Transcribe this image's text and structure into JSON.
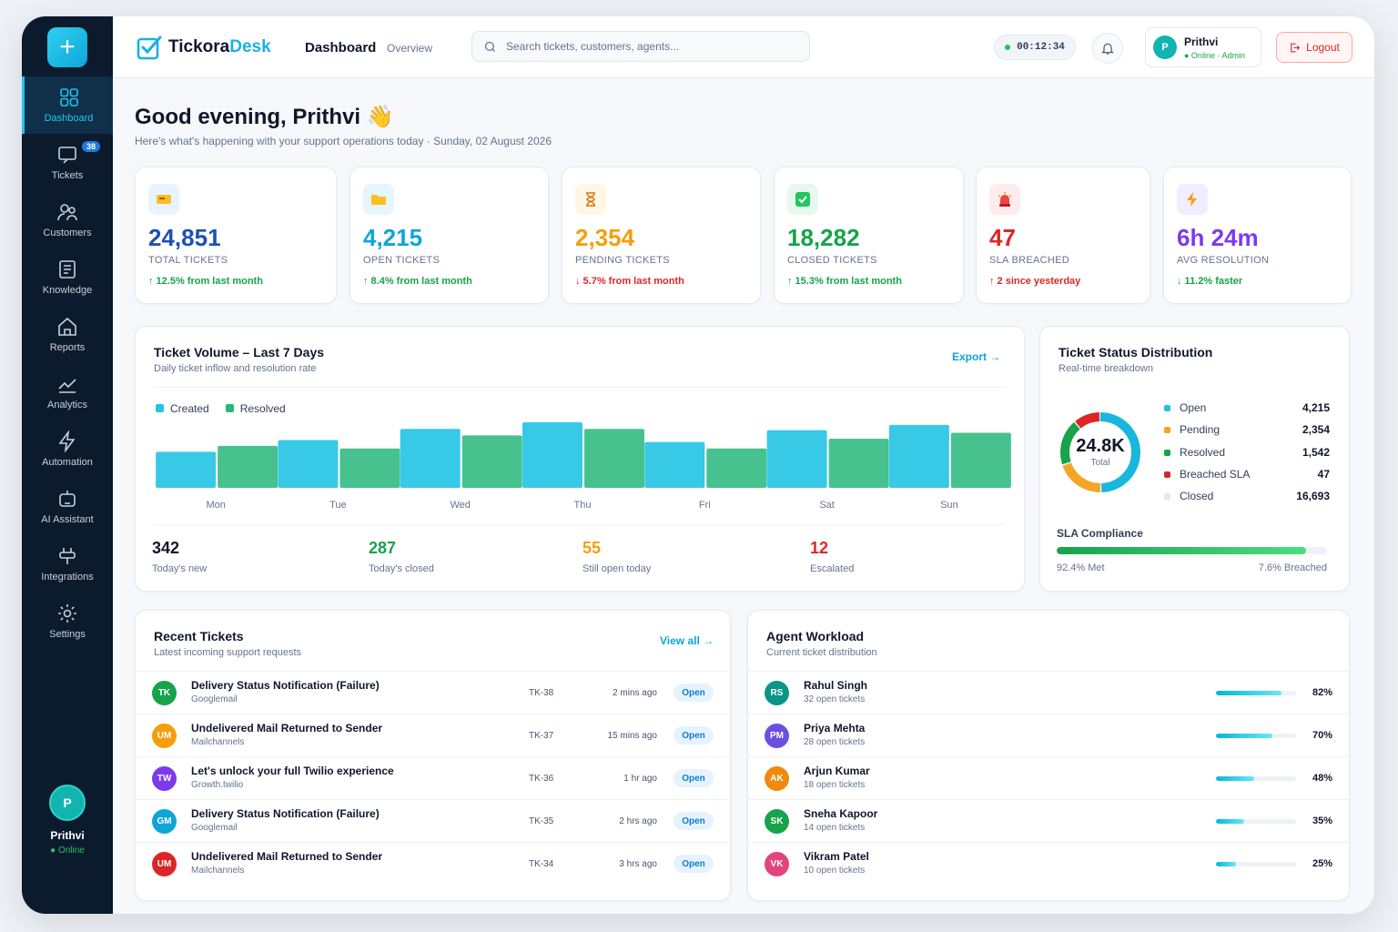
{
  "app": {
    "brand_a": "Tickora",
    "brand_b": "Desk",
    "section": "Dashboard",
    "section_sub": "Overview"
  },
  "search": {
    "placeholder": "Search tickets, customers, agents..."
  },
  "topbar": {
    "timer": "00:12:34",
    "user_initial": "P",
    "user_name": "Prithvi",
    "user_role": "● Online · Admin",
    "logout_label": "Logout"
  },
  "sidebar": {
    "items": [
      {
        "label": "Dashboard",
        "icon": "grid-icon"
      },
      {
        "label": "Tickets",
        "icon": "chat-icon",
        "badge": "38"
      },
      {
        "label": "Customers",
        "icon": "users-icon"
      },
      {
        "label": "Knowledge",
        "icon": "document-icon"
      },
      {
        "label": "Reports",
        "icon": "home-icon"
      },
      {
        "label": "Analytics",
        "icon": "trend-icon"
      },
      {
        "label": "Automation",
        "icon": "bolt-icon"
      },
      {
        "label": "AI Assistant",
        "icon": "bot-icon"
      },
      {
        "label": "Integrations",
        "icon": "plug-icon"
      },
      {
        "label": "Settings",
        "icon": "gear-icon"
      }
    ],
    "user_initial": "P",
    "user_name": "Prithvi",
    "user_status": "● Online"
  },
  "greeting": {
    "title": "Good evening, Prithvi 👋",
    "subtitle": "Here's what's happening with your support operations today · Sunday, 02 August 2026"
  },
  "stats": [
    {
      "value": "24,851",
      "label": "TOTAL TICKETS",
      "change": "↑ 12.5% from last month",
      "color": "#1e4fb8",
      "icon": "ticket-icon"
    },
    {
      "value": "4,215",
      "label": "OPEN TICKETS",
      "change": "↑ 8.4% from last month",
      "color": "#0ea5d8",
      "icon": "folder-icon"
    },
    {
      "value": "2,354",
      "label": "PENDING TICKETS",
      "change": "↓ 5.7% from last month",
      "color": "#f59e0b",
      "icon": "hourglass-icon"
    },
    {
      "value": "18,282",
      "label": "CLOSED TICKETS",
      "change": "↑ 15.3% from last month",
      "color": "#16a34a",
      "icon": "check-icon"
    },
    {
      "value": "47",
      "label": "SLA BREACHED",
      "change": "↑ 2 since yesterday",
      "color": "#dc2626",
      "icon": "siren-icon"
    },
    {
      "value": "6h 24m",
      "label": "AVG RESOLUTION",
      "change": "↓ 11.2% faster",
      "color": "#7c3aed",
      "icon": "bolt-icon"
    }
  ],
  "volume": {
    "title": "Ticket Volume – Last 7 Days",
    "subtitle": "Daily ticket inflow and resolution rate",
    "export_label": "Export →",
    "legend_created": "Created",
    "legend_resolved": "Resolved",
    "summary": [
      {
        "value": "342",
        "caption": "Today's new",
        "color": "#0f172a"
      },
      {
        "value": "287",
        "caption": "Today's closed",
        "color": "#16a34a"
      },
      {
        "value": "55",
        "caption": "Still open today",
        "color": "#f59e0b"
      },
      {
        "value": "12",
        "caption": "Escalated",
        "color": "#dc2626"
      }
    ]
  },
  "chart_data": {
    "type": "bar",
    "categories": [
      "Mon",
      "Tue",
      "Wed",
      "Thu",
      "Fri",
      "Sat",
      "Sun"
    ],
    "series": [
      {
        "name": "Created",
        "color": "#22c3e4",
        "values": [
          55,
          73,
          90,
          100,
          70,
          88,
          96
        ]
      },
      {
        "name": "Resolved",
        "color": "#27b77a",
        "values": [
          64,
          60,
          80,
          90,
          60,
          75,
          84
        ]
      }
    ],
    "ylim": [
      0,
      100
    ]
  },
  "distribution": {
    "title": "Ticket Status Distribution",
    "subtitle": "Real-time breakdown",
    "center_value": "24.8K",
    "center_label": "Total",
    "items": [
      {
        "name": "Open",
        "value": "4,215",
        "count": 4215,
        "color": "#22c3e4"
      },
      {
        "name": "Pending",
        "value": "2,354",
        "count": 2354,
        "color": "#f5a524"
      },
      {
        "name": "Resolved",
        "value": "1,542",
        "count": 1542,
        "color": "#16a34a"
      },
      {
        "name": "Breached SLA",
        "value": "47",
        "count": 47,
        "color": "#dc2626"
      },
      {
        "name": "Closed",
        "value": "16,693",
        "count": 16693,
        "color": "#e2e8f0"
      }
    ],
    "donut_segments": [
      {
        "color": "#19b6dd",
        "fraction": 0.5
      },
      {
        "color": "#f5a524",
        "fraction": 0.2
      },
      {
        "color": "#16a34a",
        "fraction": 0.19
      },
      {
        "color": "#dc2626",
        "fraction": 0.11
      }
    ],
    "sla_label": "SLA Compliance",
    "sla_met": "92.4% Met",
    "sla_breached": "7.6% Breached",
    "sla_fraction": 0.924
  },
  "recent": {
    "title": "Recent Tickets",
    "subtitle": "Latest incoming support requests",
    "view_all": "View all →",
    "rows": [
      {
        "initials": "TK",
        "color": "#16a34a",
        "title": "Delivery Status Notification (Failure)",
        "source": "Googlemail",
        "id": "TK-38",
        "ago": "2 mins ago",
        "status": "Open"
      },
      {
        "initials": "UM",
        "color": "#f59e0b",
        "title": "Undelivered Mail Returned to Sender",
        "source": "Mailchannels",
        "id": "TK-37",
        "ago": "15 mins ago",
        "status": "Open"
      },
      {
        "initials": "TW",
        "color": "#7c3aed",
        "title": "Let's unlock your full Twilio experience",
        "source": "Growth.twilio",
        "id": "TK-36",
        "ago": "1 hr ago",
        "status": "Open"
      },
      {
        "initials": "GM",
        "color": "#0ea5d8",
        "title": "Delivery Status Notification (Failure)",
        "source": "Googlemail",
        "id": "TK-35",
        "ago": "2 hrs ago",
        "status": "Open"
      },
      {
        "initials": "UM",
        "color": "#dc2626",
        "title": "Undelivered Mail Returned to Sender",
        "source": "Mailchannels",
        "id": "TK-34",
        "ago": "3 hrs ago",
        "status": "Open"
      }
    ]
  },
  "workload": {
    "title": "Agent Workload",
    "subtitle": "Current ticket distribution",
    "rows": [
      {
        "initials": "RS",
        "color": "#0d9488",
        "name": "Rahul Singh",
        "tickets": "32 open tickets",
        "pct": "82%",
        "fraction": 0.82
      },
      {
        "initials": "PM",
        "color": "#6d4fe0",
        "name": "Priya Mehta",
        "tickets": "28 open tickets",
        "pct": "70%",
        "fraction": 0.7
      },
      {
        "initials": "AK",
        "color": "#f08a0c",
        "name": "Arjun Kumar",
        "tickets": "18 open tickets",
        "pct": "48%",
        "fraction": 0.48
      },
      {
        "initials": "SK",
        "color": "#16a34a",
        "name": "Sneha Kapoor",
        "tickets": "14 open tickets",
        "pct": "35%",
        "fraction": 0.35
      },
      {
        "initials": "VK",
        "color": "#e0457b",
        "name": "Vikram Patel",
        "tickets": "10 open tickets",
        "pct": "25%",
        "fraction": 0.25
      }
    ]
  }
}
